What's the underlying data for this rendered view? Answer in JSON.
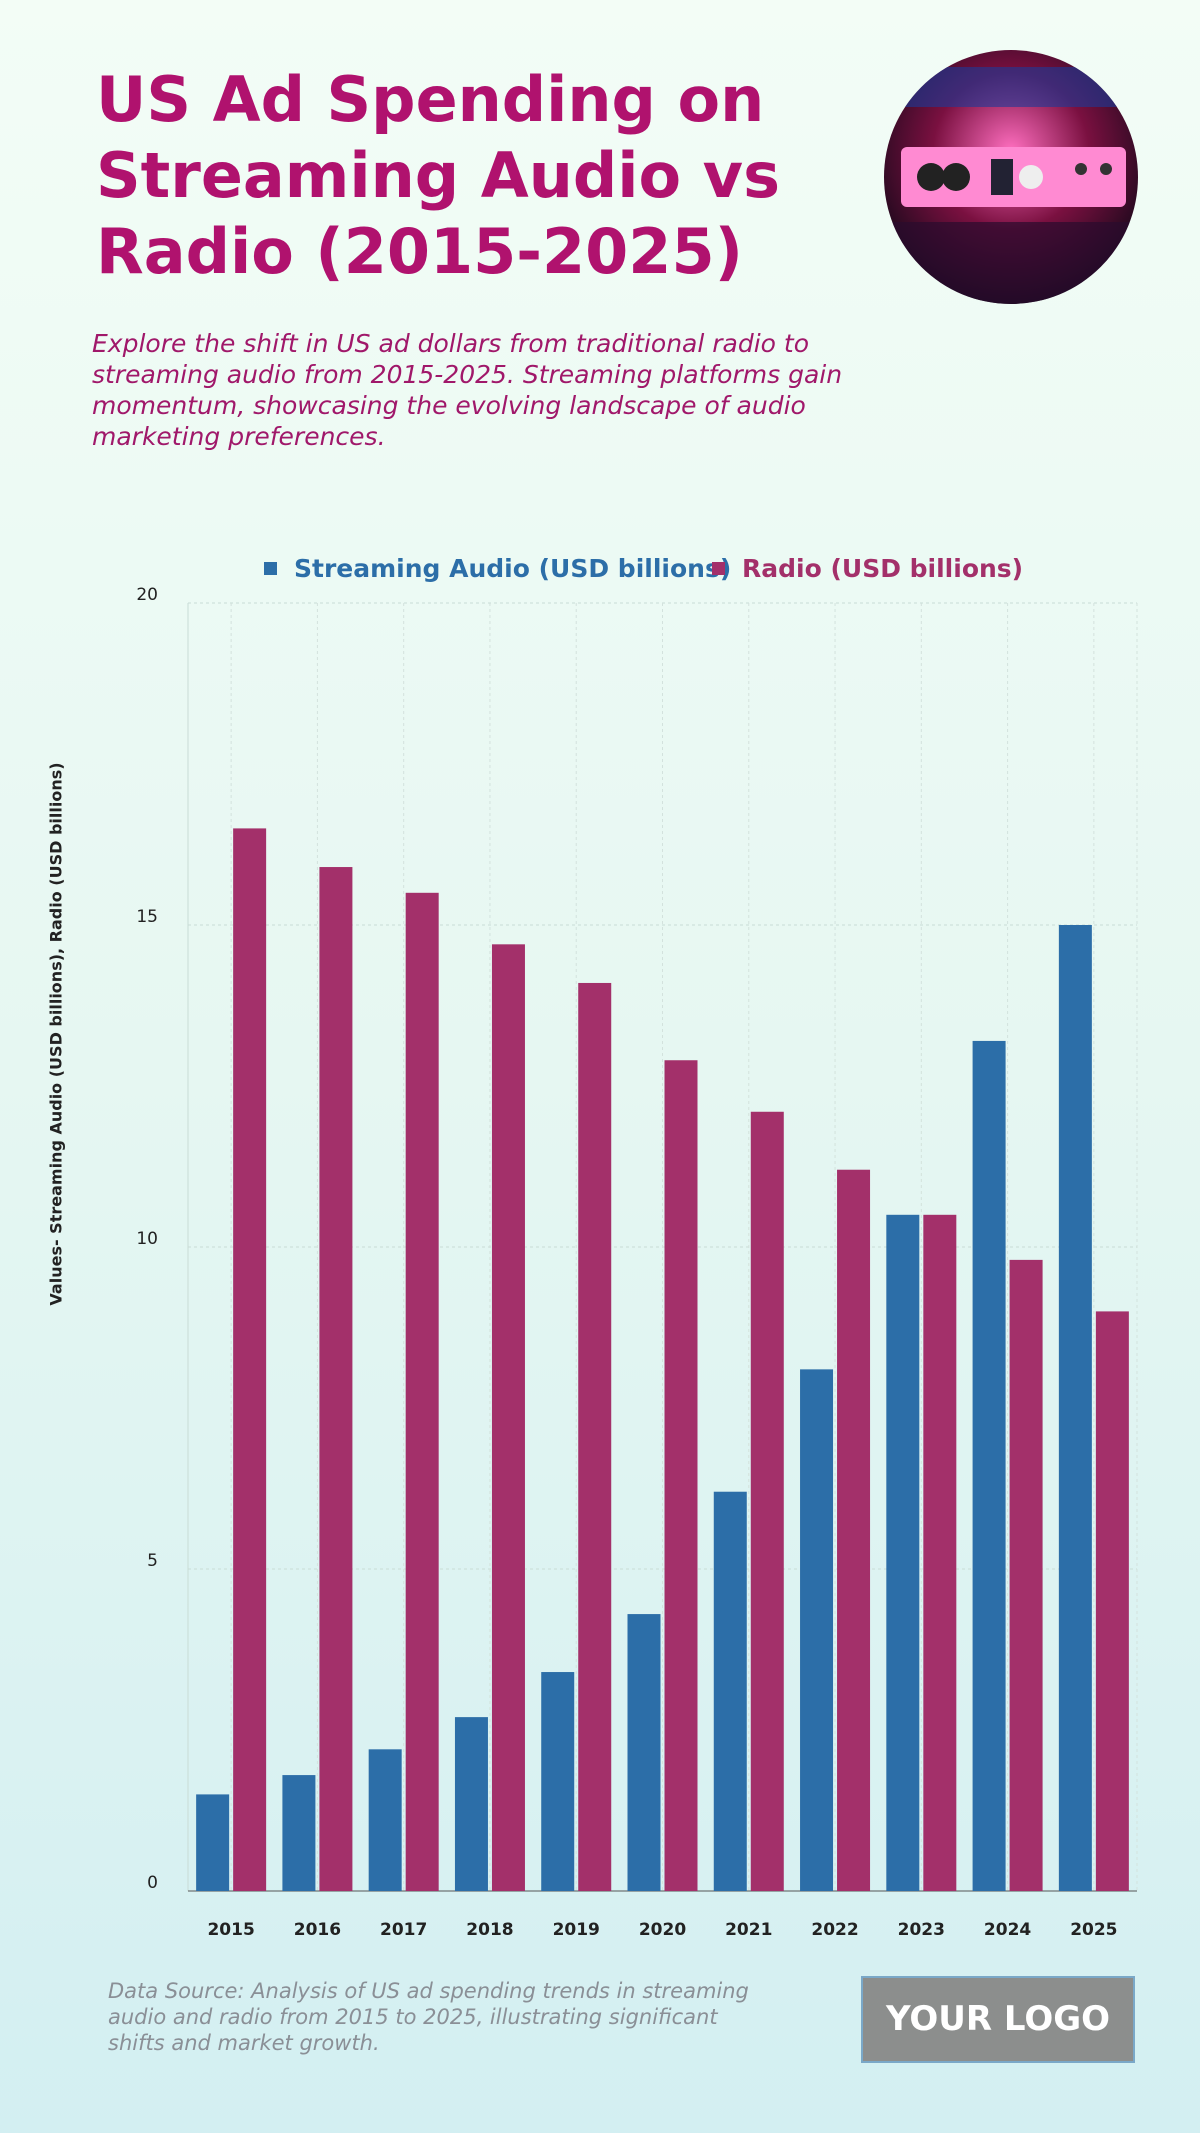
{
  "chart_data": {
    "type": "bar",
    "title": "US Ad Spending on Streaming Audio vs Radio (2015-2025)",
    "subtitle": "Explore the shift in US ad dollars from traditional radio to streaming audio from 2015-2025. Streaming platforms gain momentum, showcasing the evolving landscape of audio marketing preferences.",
    "y_label": "Values- Streaming Audio (USD billions), Radio (USD billions)",
    "categories": [
      "2015",
      "2016",
      "2017",
      "2018",
      "2019",
      "2020",
      "2021",
      "2022",
      "2023",
      "2024",
      "2025"
    ],
    "series": [
      {
        "name": "Streaming Audio (USD billions)",
        "color": "#2c6ea8",
        "values": [
          1.5,
          1.8,
          2.2,
          2.7,
          3.4,
          4.3,
          6.2,
          8.1,
          10.5,
          13.2,
          15.0
        ]
      },
      {
        "name": "Radio (USD billions)",
        "color": "#a3306a",
        "values": [
          16.5,
          15.9,
          15.5,
          14.7,
          14.1,
          12.9,
          12.1,
          11.2,
          10.5,
          9.8,
          9.0
        ]
      }
    ],
    "ylim": [
      0,
      20
    ],
    "yticks": [
      0,
      5,
      10,
      15,
      20
    ],
    "grid": true,
    "legend": "top"
  },
  "source": "Data Source: Analysis of US ad spending trends in streaming audio and radio from 2015 to 2025, illustrating significant shifts and market growth.",
  "logo": "YOUR LOGO"
}
